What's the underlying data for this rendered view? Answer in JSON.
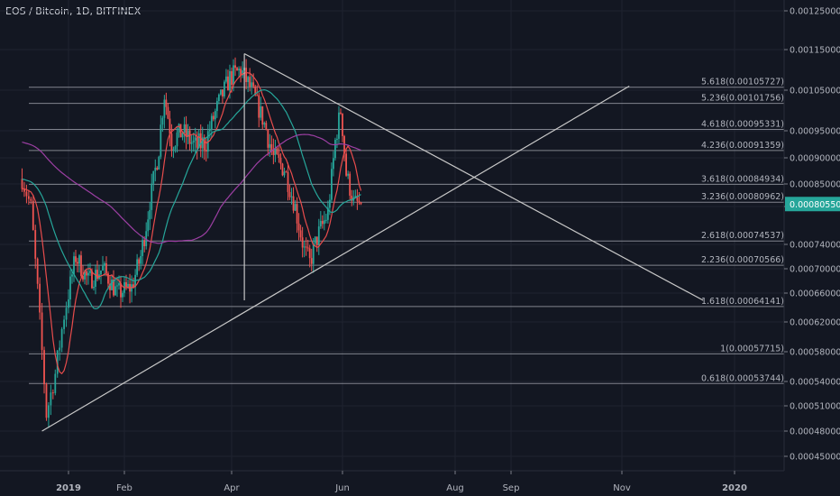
{
  "chart_title": "EOS / Bitcoin, 1D, BITFINEX",
  "colors": {
    "background": "#131722",
    "grid": "#1f2330",
    "fib_line": "#9598a1",
    "trendline": "#c8c8c8",
    "up_candle": "#26a69a",
    "down_candle": "#ef5350",
    "ma_fast": "#e84c4c",
    "ma_mid": "#26a69a",
    "ma_slow": "#9c3fa3",
    "price_tag": "#26a69a"
  },
  "chart_data": {
    "type": "candlestick",
    "title": "EOS / Bitcoin, 1D, BITFINEX",
    "y_ticks": [
      0.00045,
      0.00048,
      0.00051,
      0.00054,
      0.00058,
      0.00062,
      0.00066,
      0.0007,
      0.00074,
      0.0008,
      0.00085,
      0.0009,
      0.00095,
      0.00105,
      0.00115,
      0.00125
    ],
    "y_tick_labels": [
      "0.00045000",
      "0.00048000",
      "0.00051000",
      "0.00054000",
      "0.00058000",
      "0.00062000",
      "0.00066000",
      "0.00070000",
      "0.00074000",
      "0.00080000",
      "0.00085000",
      "0.00090000",
      "0.00095000",
      "0.00105000",
      "0.00115000",
      "0.00125000"
    ],
    "x_tick_labels": [
      {
        "label": "2019",
        "date": "2019-01-01",
        "bold": true
      },
      {
        "label": "Feb",
        "date": "2019-02-01",
        "bold": false
      },
      {
        "label": "Apr",
        "date": "2019-04-01",
        "bold": false
      },
      {
        "label": "Jun",
        "date": "2019-06-01",
        "bold": false
      },
      {
        "label": "Aug",
        "date": "2019-08-01",
        "bold": false
      },
      {
        "label": "Sep",
        "date": "2019-09-01",
        "bold": false
      },
      {
        "label": "Nov",
        "date": "2019-11-01",
        "bold": false
      },
      {
        "label": "2020",
        "date": "2020-01-01",
        "bold": true
      }
    ],
    "last_price": 0.0008055,
    "last_price_label": "0.00080550",
    "fib_levels": [
      {
        "ratio": "5.618",
        "value": 0.00105727,
        "label": "5.618(0.00105727)"
      },
      {
        "ratio": "5.236",
        "value": 0.00101756,
        "label": "5.236(0.00101756)"
      },
      {
        "ratio": "4.618",
        "value": 0.00095331,
        "label": "4.618(0.00095331)"
      },
      {
        "ratio": "4.236",
        "value": 0.00091359,
        "label": "4.236(0.00091359)"
      },
      {
        "ratio": "3.618",
        "value": 0.00084934,
        "label": "3.618(0.00084934)"
      },
      {
        "ratio": "3.236",
        "value": 0.00080962,
        "label": "3.236(0.00080962)"
      },
      {
        "ratio": "2.618",
        "value": 0.00074537,
        "label": "2.618(0.00074537)"
      },
      {
        "ratio": "2.236",
        "value": 0.00070566,
        "label": "2.236(0.00070566)"
      },
      {
        "ratio": "1.618",
        "value": 0.00064141,
        "label": "1.618(0.00064141)"
      },
      {
        "ratio": "1",
        "value": 0.00057715,
        "label": "1(0.00057715)"
      },
      {
        "ratio": "0.618",
        "value": 0.00053744,
        "label": "0.618(0.00053744)"
      }
    ],
    "trendlines": [
      {
        "name": "descending-resistance",
        "start": {
          "date": "2019-04-08",
          "value": 0.00114
        },
        "end": {
          "date": "2019-12-15",
          "value": 0.00065
        }
      },
      {
        "name": "ascending-support",
        "start": {
          "date": "2018-12-20",
          "value": 0.00048
        },
        "end": {
          "date": "2019-11-05",
          "value": 0.00106
        }
      },
      {
        "name": "vertical-marker",
        "start": {
          "date": "2019-04-08",
          "value": 0.00114
        },
        "end": {
          "date": "2019-04-08",
          "value": 0.00065
        }
      }
    ],
    "price_anchors": [
      {
        "date": "2018-12-11",
        "value": 0.00086
      },
      {
        "date": "2018-12-15",
        "value": 0.0008
      },
      {
        "date": "2018-12-19",
        "value": 0.00062
      },
      {
        "date": "2018-12-22",
        "value": 0.0005
      },
      {
        "date": "2018-12-26",
        "value": 0.00055
      },
      {
        "date": "2018-12-30",
        "value": 0.00063
      },
      {
        "date": "2019-01-05",
        "value": 0.00072
      },
      {
        "date": "2019-01-12",
        "value": 0.00068
      },
      {
        "date": "2019-01-20",
        "value": 0.0007
      },
      {
        "date": "2019-01-28",
        "value": 0.00066
      },
      {
        "date": "2019-02-05",
        "value": 0.00067
      },
      {
        "date": "2019-02-10",
        "value": 0.00072
      },
      {
        "date": "2019-02-14",
        "value": 0.00079
      },
      {
        "date": "2019-02-20",
        "value": 0.00092
      },
      {
        "date": "2019-02-23",
        "value": 0.00104
      },
      {
        "date": "2019-02-27",
        "value": 0.00093
      },
      {
        "date": "2019-03-05",
        "value": 0.00095
      },
      {
        "date": "2019-03-12",
        "value": 0.00092
      },
      {
        "date": "2019-03-18",
        "value": 0.00093
      },
      {
        "date": "2019-03-25",
        "value": 0.00102
      },
      {
        "date": "2019-03-31",
        "value": 0.00108
      },
      {
        "date": "2019-04-06",
        "value": 0.0011
      },
      {
        "date": "2019-04-12",
        "value": 0.00105
      },
      {
        "date": "2019-04-18",
        "value": 0.00098
      },
      {
        "date": "2019-04-24",
        "value": 0.0009
      },
      {
        "date": "2019-04-30",
        "value": 0.00088
      },
      {
        "date": "2019-05-06",
        "value": 0.0008
      },
      {
        "date": "2019-05-11",
        "value": 0.00073
      },
      {
        "date": "2019-05-14",
        "value": 0.00071
      },
      {
        "date": "2019-05-18",
        "value": 0.00075
      },
      {
        "date": "2019-05-24",
        "value": 0.00079
      },
      {
        "date": "2019-05-28",
        "value": 0.00093
      },
      {
        "date": "2019-05-31",
        "value": 0.001
      },
      {
        "date": "2019-06-03",
        "value": 0.00087
      },
      {
        "date": "2019-06-07",
        "value": 0.00081
      },
      {
        "date": "2019-06-11",
        "value": 0.000805
      }
    ]
  }
}
